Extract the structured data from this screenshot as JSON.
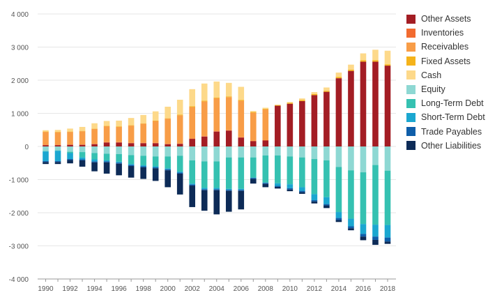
{
  "chart_data": {
    "type": "bar",
    "stacked": true,
    "title": "",
    "xlabel": "",
    "ylabel": "",
    "ylim": [
      -4000,
      4000
    ],
    "yticks": [
      -4000,
      -3000,
      -2000,
      -1000,
      0,
      1000,
      2000,
      3000,
      4000
    ],
    "ytick_labels": [
      "-4 000",
      "-3 000",
      "-2 000",
      "-1 000",
      "0",
      "1 000",
      "2 000",
      "3 000",
      "4 000"
    ],
    "xtick_labels": [
      "1990",
      "1992",
      "1994",
      "1996",
      "1998",
      "2000",
      "2002",
      "2004",
      "2006",
      "2008",
      "2010",
      "2012",
      "2014",
      "2016",
      "2018"
    ],
    "grid": true,
    "legend_position": "right",
    "categories": [
      "1990",
      "1991",
      "1992",
      "1993",
      "1994",
      "1995",
      "1996",
      "1997",
      "1998",
      "1999",
      "2000",
      "2001",
      "2002",
      "2003",
      "2004",
      "2005",
      "2006",
      "2007",
      "2008",
      "2009",
      "2010",
      "2011",
      "2012",
      "2013",
      "2014",
      "2015",
      "2016",
      "2017",
      "2018"
    ],
    "series": [
      {
        "name": "Other Assets",
        "color": "#a31d24",
        "values": [
          40,
          40,
          50,
          50,
          70,
          120,
          120,
          100,
          100,
          100,
          70,
          80,
          230,
          300,
          450,
          480,
          270,
          160,
          180,
          1230,
          1290,
          1370,
          1550,
          1650,
          2060,
          2280,
          2560,
          2560,
          2440
        ]
      },
      {
        "name": "Inventories",
        "color": "#f26b30",
        "values": [
          10,
          10,
          10,
          10,
          10,
          10,
          10,
          10,
          10,
          10,
          10,
          10,
          10,
          10,
          10,
          10,
          10,
          10,
          10,
          0,
          0,
          0,
          0,
          0,
          0,
          0,
          0,
          0,
          0
        ]
      },
      {
        "name": "Receivables",
        "color": "#f89d47",
        "values": [
          390,
          380,
          380,
          400,
          450,
          480,
          460,
          520,
          580,
          660,
          760,
          850,
          950,
          1050,
          1000,
          1000,
          1100,
          850,
          930,
          0,
          0,
          0,
          0,
          0,
          0,
          0,
          0,
          0,
          0
        ]
      },
      {
        "name": "Fixed Assets",
        "color": "#f5b31a",
        "values": [
          10,
          10,
          10,
          10,
          10,
          10,
          10,
          10,
          10,
          10,
          10,
          20,
          20,
          20,
          20,
          20,
          20,
          20,
          20,
          20,
          30,
          30,
          30,
          30,
          40,
          40,
          40,
          40,
          40
        ]
      },
      {
        "name": "Cash",
        "color": "#fdd98a",
        "values": [
          40,
          60,
          90,
          120,
          160,
          150,
          180,
          220,
          250,
          280,
          350,
          450,
          520,
          520,
          480,
          410,
          400,
          30,
          30,
          10,
          20,
          50,
          60,
          100,
          130,
          150,
          210,
          320,
          410
        ]
      },
      {
        "name": "Equity",
        "color": "#8ed8d3",
        "values": [
          -140,
          -120,
          -160,
          -170,
          -200,
          -220,
          -230,
          -260,
          -280,
          -300,
          -300,
          -280,
          -420,
          -450,
          -450,
          -330,
          -330,
          -330,
          -270,
          -270,
          -300,
          -330,
          -380,
          -420,
          -620,
          -720,
          -780,
          -560,
          -730
        ]
      },
      {
        "name": "Long-Term Debt",
        "color": "#35c1b1",
        "values": [
          -10,
          -10,
          -40,
          -160,
          -190,
          -200,
          -230,
          -270,
          -290,
          -300,
          -360,
          -480,
          -700,
          -800,
          -800,
          -950,
          -950,
          -610,
          -820,
          -840,
          -840,
          -900,
          -1060,
          -1110,
          -1360,
          -1460,
          -1560,
          -1800,
          -1640
        ]
      },
      {
        "name": "Short-Term Debt",
        "color": "#1ba7d0",
        "values": [
          -290,
          -310,
          -180,
          -60,
          -60,
          -30,
          -30,
          -30,
          -30,
          -30,
          -30,
          -30,
          -30,
          -40,
          -40,
          -30,
          -30,
          -10,
          -10,
          -80,
          -120,
          -110,
          -180,
          -210,
          -180,
          -230,
          -300,
          -360,
          -380
        ]
      },
      {
        "name": "Trade Payables",
        "color": "#0f5ea9",
        "values": [
          -30,
          -30,
          -30,
          -30,
          -30,
          -30,
          -30,
          -30,
          -30,
          -30,
          -30,
          -30,
          -30,
          -30,
          -30,
          -30,
          -30,
          -30,
          -30,
          -30,
          -40,
          -40,
          -40,
          -40,
          -60,
          -60,
          -80,
          -100,
          -120
        ]
      },
      {
        "name": "Other Liabilities",
        "color": "#0d2b57",
        "values": [
          -60,
          -60,
          -100,
          -190,
          -270,
          -340,
          -350,
          -350,
          -350,
          -380,
          -510,
          -630,
          -650,
          -620,
          -730,
          -630,
          -560,
          -140,
          -100,
          -50,
          -50,
          -50,
          -60,
          -80,
          -60,
          -60,
          -110,
          -150,
          -70
        ]
      }
    ]
  }
}
